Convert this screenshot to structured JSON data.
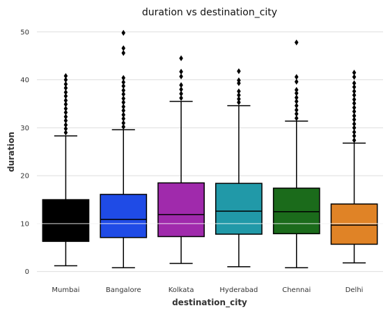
{
  "chart_data": {
    "type": "box",
    "title": "duration vs destination_city",
    "xlabel": "destination_city",
    "ylabel": "duration",
    "ylim": [
      -1.5,
      52
    ],
    "yticks": [
      0,
      10,
      20,
      30,
      40,
      50
    ],
    "grid": "horizontal",
    "categories": [
      "Mumbai",
      "Bangalore",
      "Kolkata",
      "Hyderabad",
      "Chennai",
      "Delhi"
    ],
    "colors": [
      "#000000",
      "#1f4be6",
      "#a02aac",
      "#2199a8",
      "#1b6b1b",
      "#e08326"
    ],
    "boxes": [
      {
        "whislo": 1.2,
        "q1": 6.3,
        "med": 10.3,
        "q3": 15.0,
        "whishi": 28.3,
        "fliers": [
          29,
          29.8,
          30.6,
          31.5,
          32.3,
          33.2,
          34.0,
          34.9,
          35.7,
          36.6,
          37.4,
          38.3,
          39.1,
          40.0,
          40.8
        ]
      },
      {
        "whislo": 0.8,
        "q1": 7.1,
        "med": 10.9,
        "q3": 16.1,
        "whishi": 29.6,
        "fliers": [
          30.2,
          31.0,
          31.9,
          32.7,
          33.6,
          34.4,
          35.3,
          36.1,
          37.0,
          37.8,
          38.7,
          39.5,
          40.4,
          45.6,
          46.6,
          49.8
        ]
      },
      {
        "whislo": 1.7,
        "q1": 7.3,
        "med": 11.9,
        "q3": 18.5,
        "whishi": 35.5,
        "fliers": [
          36.2,
          37.1,
          38.0,
          38.9,
          40.7,
          41.7,
          44.5
        ]
      },
      {
        "whislo": 1.0,
        "q1": 7.8,
        "med": 12.6,
        "q3": 18.4,
        "whishi": 34.6,
        "fliers": [
          35.3,
          36.0,
          36.8,
          37.6,
          39.3,
          39.9,
          41.8
        ]
      },
      {
        "whislo": 0.8,
        "q1": 7.9,
        "med": 12.5,
        "q3": 17.4,
        "whishi": 31.4,
        "fliers": [
          32.0,
          32.9,
          33.7,
          34.6,
          35.5,
          36.3,
          37.2,
          37.9,
          39.6,
          40.6,
          47.8
        ]
      },
      {
        "whislo": 1.8,
        "q1": 5.7,
        "med": 9.7,
        "q3": 14.1,
        "whishi": 26.8,
        "fliers": [
          27.4,
          28.3,
          29.1,
          30.0,
          30.8,
          31.7,
          32.5,
          33.4,
          34.2,
          35.1,
          35.9,
          36.8,
          37.6,
          38.5,
          39.3,
          40.6,
          41.5
        ]
      }
    ]
  }
}
